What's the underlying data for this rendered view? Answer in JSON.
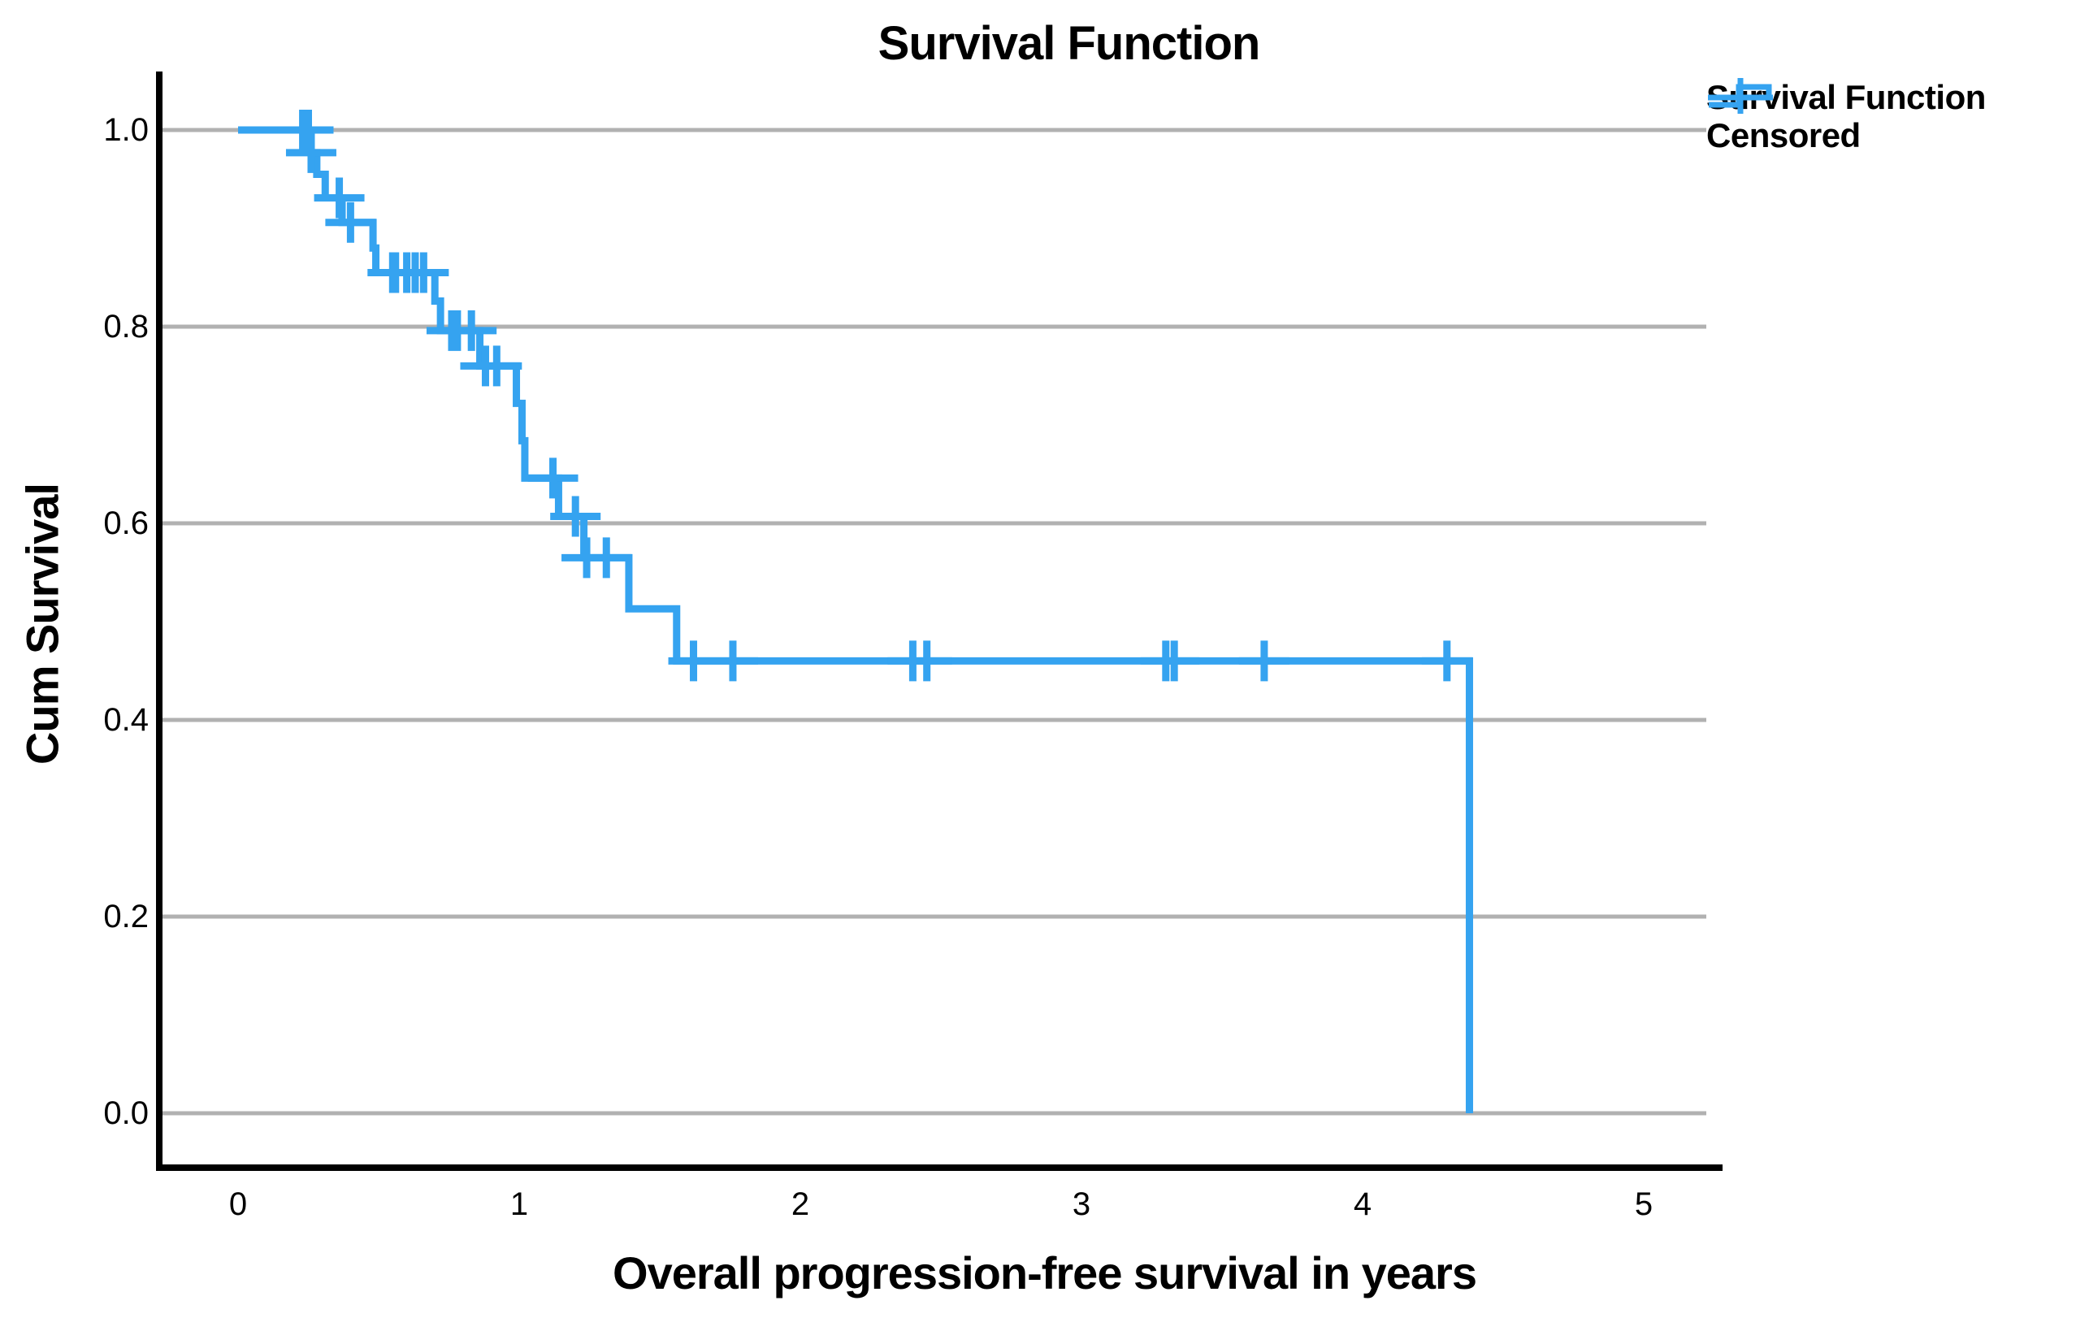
{
  "title": "Survival Function",
  "x_axis": {
    "label": "Overall progression-free survival in years",
    "ticks": [
      "0",
      "1",
      "2",
      "3",
      "4",
      "5"
    ]
  },
  "y_axis": {
    "label": "Cum Survival",
    "ticks": [
      "0.0",
      "0.2",
      "0.4",
      "0.6",
      "0.8",
      "1.0"
    ]
  },
  "legend": {
    "items": [
      {
        "label": "Survival Function",
        "symbol": "step-line"
      },
      {
        "label": "Censored",
        "symbol": "plus"
      }
    ]
  },
  "colors": {
    "series": "#35A3F0",
    "grid": "#b1b1b1",
    "axis": "#000000",
    "text": "#000000",
    "background": "#ffffff"
  },
  "chart_data": {
    "type": "line",
    "subtype": "kaplan-meier-step",
    "title": "Survival Function",
    "xlabel": "Overall progression-free survival in years",
    "ylabel": "Cum Survival",
    "xlim": [
      0,
      5.2
    ],
    "ylim": [
      0,
      1.0
    ],
    "x_ticks": [
      0,
      1,
      2,
      3,
      4,
      5
    ],
    "y_ticks": [
      0.0,
      0.2,
      0.4,
      0.6,
      0.8,
      1.0
    ],
    "grid": "horizontal-only",
    "legend_position": "top-right",
    "series": [
      {
        "name": "Survival Function",
        "steps": [
          [
            0.0,
            1.0
          ],
          [
            0.26,
            0.977
          ],
          [
            0.28,
            0.955
          ],
          [
            0.31,
            0.931
          ],
          [
            0.37,
            0.906
          ],
          [
            0.48,
            0.88
          ],
          [
            0.49,
            0.855
          ],
          [
            0.7,
            0.826
          ],
          [
            0.72,
            0.796
          ],
          [
            0.86,
            0.76
          ],
          [
            0.99,
            0.722
          ],
          [
            1.01,
            0.684
          ],
          [
            1.02,
            0.646
          ],
          [
            1.14,
            0.607
          ],
          [
            1.23,
            0.565
          ],
          [
            1.39,
            0.513
          ],
          [
            1.56,
            0.46
          ],
          [
            4.38,
            0.0
          ]
        ]
      }
    ],
    "censored": [
      [
        0.23,
        1.0
      ],
      [
        0.25,
        1.0
      ],
      [
        0.26,
        0.977
      ],
      [
        0.36,
        0.931
      ],
      [
        0.4,
        0.906
      ],
      [
        0.55,
        0.855
      ],
      [
        0.56,
        0.855
      ],
      [
        0.6,
        0.855
      ],
      [
        0.63,
        0.855
      ],
      [
        0.66,
        0.855
      ],
      [
        0.76,
        0.796
      ],
      [
        0.78,
        0.796
      ],
      [
        0.83,
        0.796
      ],
      [
        0.88,
        0.76
      ],
      [
        0.92,
        0.76
      ],
      [
        1.12,
        0.646
      ],
      [
        1.2,
        0.607
      ],
      [
        1.24,
        0.565
      ],
      [
        1.31,
        0.565
      ],
      [
        1.62,
        0.46
      ],
      [
        1.76,
        0.46
      ],
      [
        2.4,
        0.46
      ],
      [
        2.45,
        0.46
      ],
      [
        3.3,
        0.46
      ],
      [
        3.33,
        0.46
      ],
      [
        3.65,
        0.46
      ],
      [
        4.3,
        0.46
      ]
    ]
  }
}
